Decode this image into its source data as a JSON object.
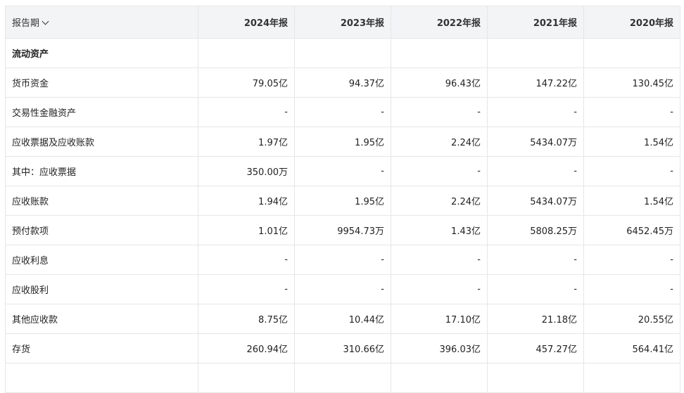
{
  "header": {
    "period_label": "报告期",
    "columns": [
      "2024年报",
      "2023年报",
      "2022年报",
      "2021年报",
      "2020年报"
    ]
  },
  "rows": [
    {
      "label": "流动资产",
      "values": [
        "",
        "",
        "",
        "",
        ""
      ],
      "section": true
    },
    {
      "label": "货币资金",
      "values": [
        "79.05亿",
        "94.37亿",
        "96.43亿",
        "147.22亿",
        "130.45亿"
      ]
    },
    {
      "label": "交易性金融资产",
      "values": [
        "-",
        "-",
        "-",
        "-",
        "-"
      ]
    },
    {
      "label": "应收票据及应收账款",
      "values": [
        "1.97亿",
        "1.95亿",
        "2.24亿",
        "5434.07万",
        "1.54亿"
      ]
    },
    {
      "label": "其中：应收票据",
      "values": [
        "350.00万",
        "-",
        "-",
        "-",
        "-"
      ]
    },
    {
      "label": "应收账款",
      "values": [
        "1.94亿",
        "1.95亿",
        "2.24亿",
        "5434.07万",
        "1.54亿"
      ]
    },
    {
      "label": "预付款项",
      "values": [
        "1.01亿",
        "9954.73万",
        "1.43亿",
        "5808.25万",
        "6452.45万"
      ]
    },
    {
      "label": "应收利息",
      "values": [
        "-",
        "-",
        "-",
        "-",
        "-"
      ]
    },
    {
      "label": "应收股利",
      "values": [
        "-",
        "-",
        "-",
        "-",
        "-"
      ]
    },
    {
      "label": "其他应收款",
      "values": [
        "8.75亿",
        "10.44亿",
        "17.10亿",
        "21.18亿",
        "20.55亿"
      ]
    },
    {
      "label": "存货",
      "values": [
        "260.94亿",
        "310.66亿",
        "396.03亿",
        "457.27亿",
        "564.41亿"
      ]
    },
    {
      "label": "",
      "values": [
        "",
        "",
        "",
        "",
        ""
      ]
    }
  ]
}
